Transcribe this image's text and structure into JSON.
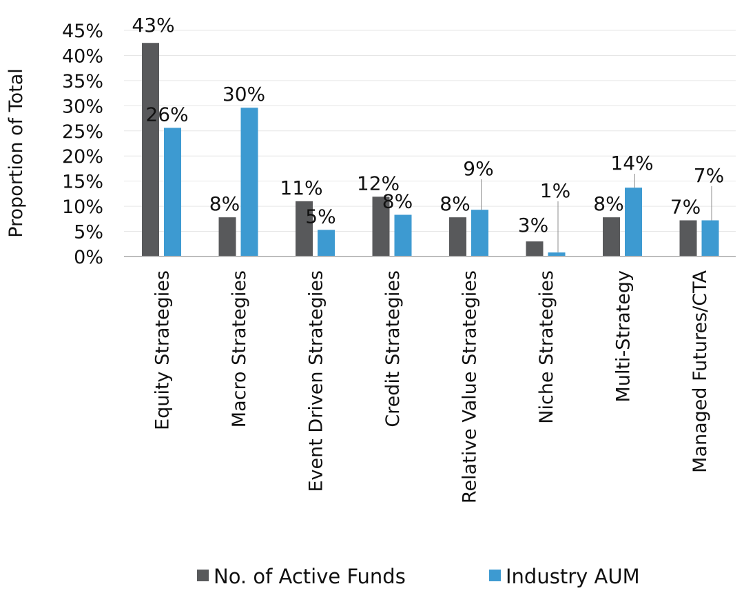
{
  "chart_data": {
    "type": "bar",
    "ylabel": "Proportion of Total",
    "ylim": [
      0,
      45
    ],
    "y_ticks": [
      "0%",
      "5%",
      "10%",
      "15%",
      "20%",
      "25%",
      "30%",
      "35%",
      "40%",
      "45%"
    ],
    "grid": true,
    "legend_position": "bottom",
    "categories": [
      "Equity Strategies",
      "Macro Strategies",
      "Event Driven Strategies",
      "Credit Strategies",
      "Relative Value Strategies",
      "Niche Strategies",
      "Multi-Strategy",
      "Managed Futures/CTA"
    ],
    "series": [
      {
        "name": "No. of Active Funds",
        "color": "#58595b",
        "values": [
          42.5,
          7.8,
          11.0,
          11.9,
          7.8,
          3.0,
          7.8,
          7.2
        ],
        "labels": [
          "43%",
          "8%",
          "11%",
          "12%",
          "8%",
          "3%",
          "8%",
          "7%"
        ]
      },
      {
        "name": "Industry AUM",
        "color": "#3d9ad1",
        "values": [
          25.6,
          29.6,
          5.3,
          8.3,
          9.3,
          0.8,
          13.7,
          7.2
        ],
        "labels": [
          "26%",
          "30%",
          "5%",
          "8%",
          "9%",
          "1%",
          "14%",
          "7%"
        ]
      }
    ]
  }
}
